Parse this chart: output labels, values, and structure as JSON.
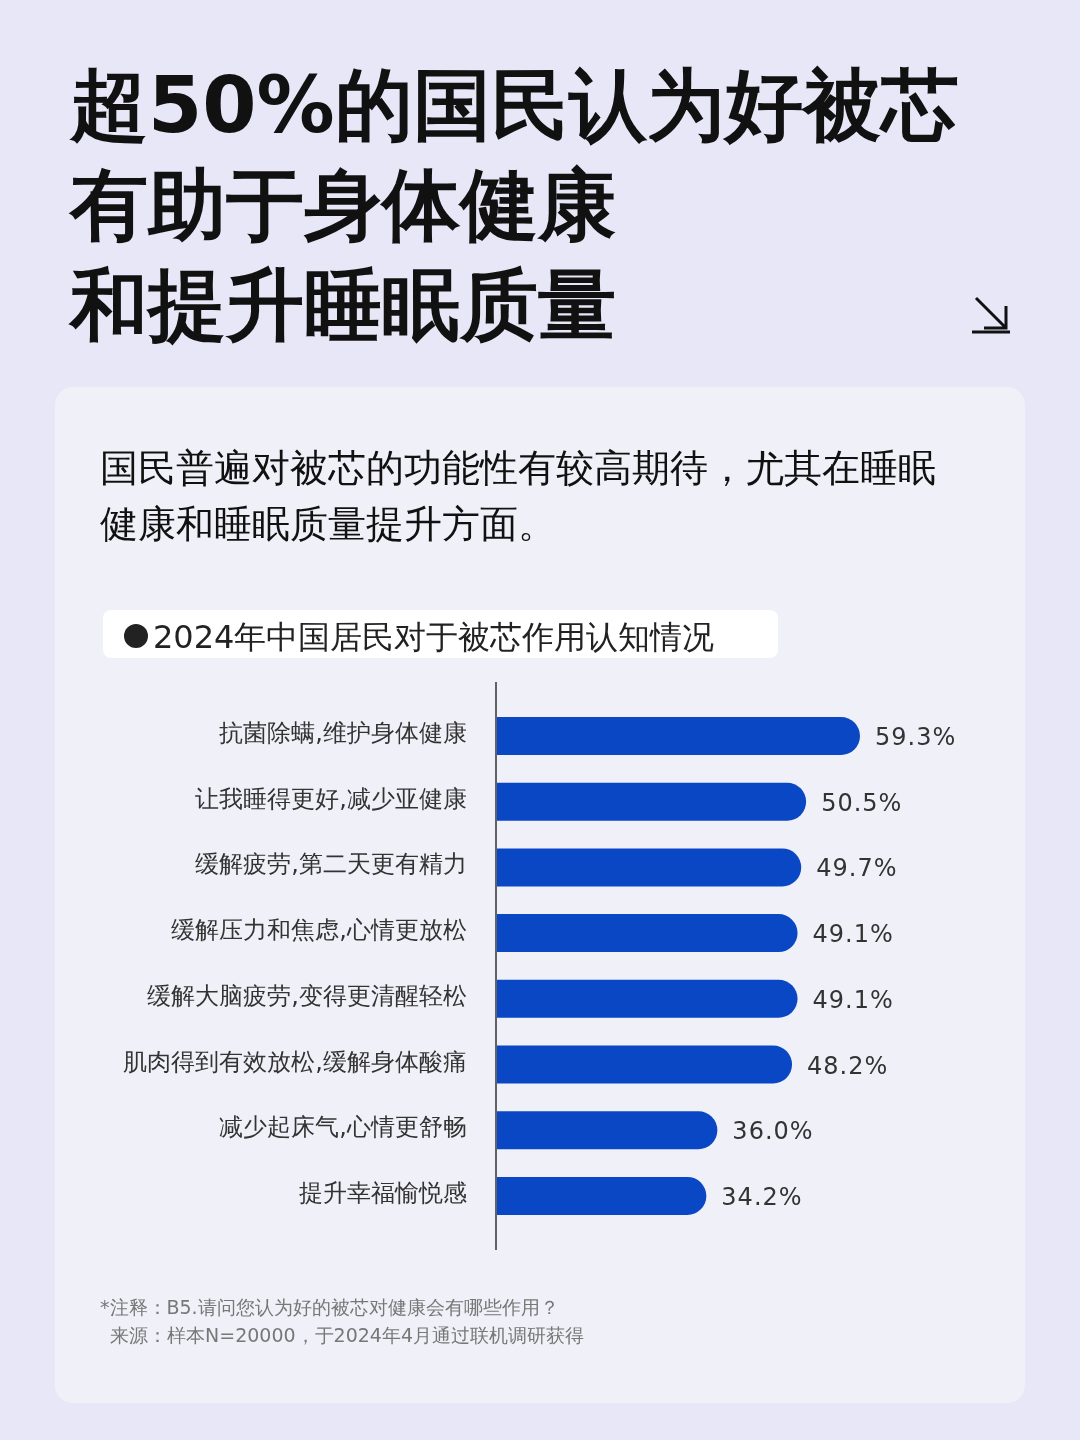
{
  "chart_data": {
    "type": "bar",
    "orientation": "horizontal",
    "title": "超50%的国民认为好被芯有助于身体健康和提升睡眠质量",
    "subtitle": "国民普遍对被芯的功能性有较高期待，尤其在睡眠健康和睡眠质量提升方面。",
    "categories": [
      "抗菌除螨,维护身体健康",
      "让我睡得更好,减少亚健康",
      "缓解疲劳,第二天更有精力",
      "缓解压力和焦虑,心情更放松",
      "缓解大脑疲劳,变得更清醒轻松",
      "肌肉得到有效放松,缓解身体酸痛",
      "减少起床气,心情更舒畅",
      "提升幸福愉悦感"
    ],
    "values": [
      59.3,
      50.5,
      49.7,
      49.1,
      49.1,
      48.2,
      36.0,
      34.2
    ],
    "value_labels": [
      "59.3%",
      "50.5%",
      "49.7%",
      "49.1%",
      "49.1%",
      "48.2%",
      "36.0%",
      "34.2%"
    ],
    "color": "#0a47c4",
    "annotations": [
      "2024年中国居民对于被芯作用认知情况",
      "*注释：B5.请问您认为好的被芯对健康会有哪些作用？",
      "来源：样本N=20000，于2024年4月通过联机调研获得"
    ]
  }
}
